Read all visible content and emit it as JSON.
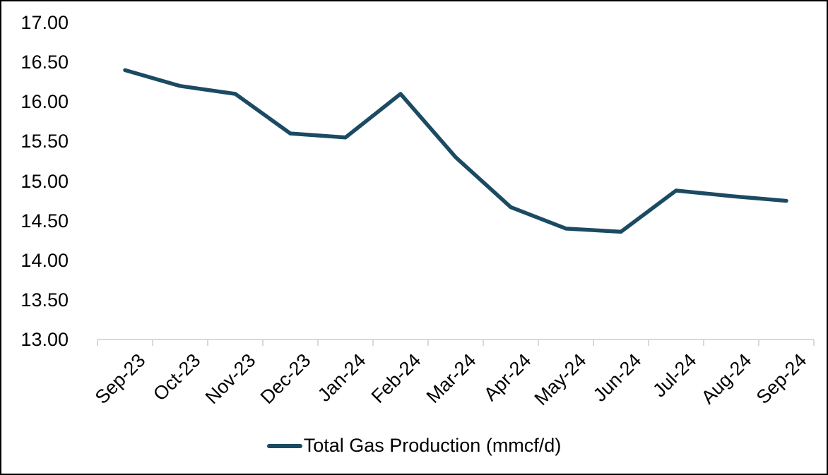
{
  "chart_data": {
    "type": "line",
    "title": "",
    "xlabel": "",
    "ylabel": "",
    "categories": [
      "Sep-23",
      "Oct-23",
      "Nov-23",
      "Dec-23",
      "Jan-24",
      "Feb-24",
      "Mar-24",
      "Apr-24",
      "May-24",
      "Jun-24",
      "Jul-24",
      "Aug-24",
      "Sep-24"
    ],
    "series": [
      {
        "name": "Total Gas Production (mmcf/d)",
        "values": [
          16.4,
          16.2,
          16.1,
          15.6,
          15.55,
          16.1,
          15.3,
          14.67,
          14.4,
          14.36,
          14.88,
          14.81,
          14.75
        ]
      }
    ],
    "ylim": [
      13.0,
      17.0
    ],
    "ytick_step": 0.5,
    "ytick_labels": [
      "17.00",
      "16.50",
      "16.00",
      "15.50",
      "15.00",
      "14.50",
      "14.00",
      "13.50",
      "13.00"
    ],
    "grid": false,
    "legend_position": "bottom",
    "colors": {
      "line": "#1b4a63",
      "axis": "#d9d9d9",
      "text": "#000000",
      "background": "#ffffff",
      "border": "#000000"
    }
  },
  "legend": {
    "label": "Total Gas Production (mmcf/d)"
  }
}
